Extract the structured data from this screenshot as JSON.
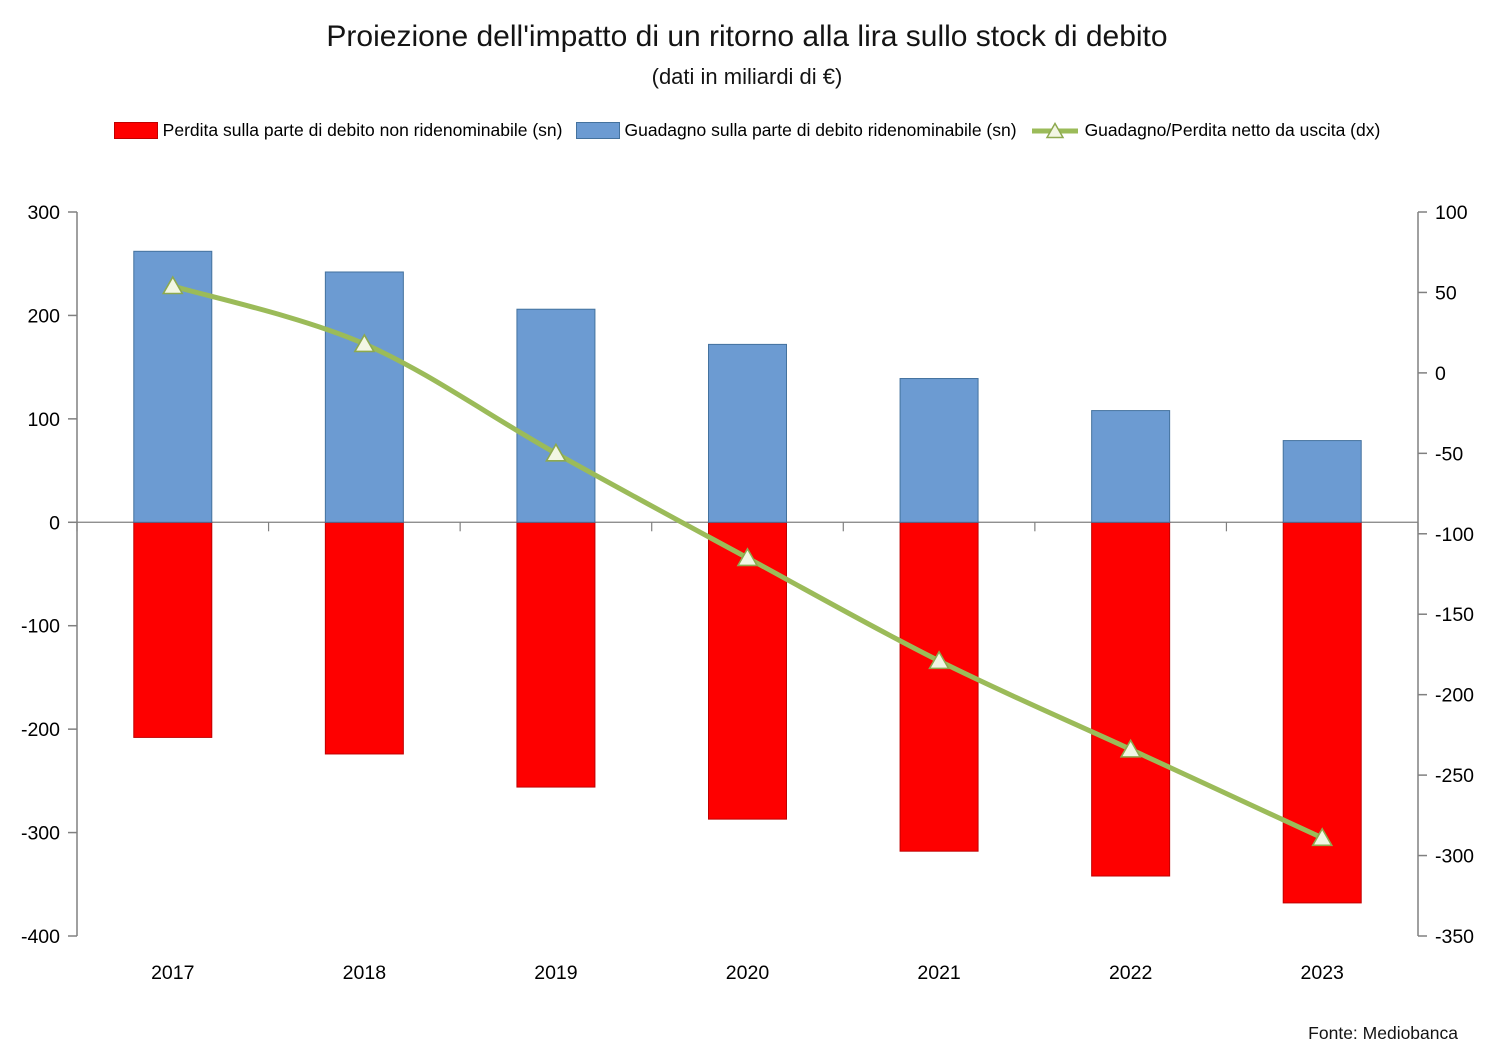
{
  "title": "Proiezione dell'impatto di un ritorno alla lira sullo stock di debito",
  "subtitle": "(dati in miliardi di €)",
  "source": "Fonte: Mediobanca",
  "colors": {
    "loss_bar": "#FE0000",
    "loss_bar_border": "#C00000",
    "gain_bar": "#6C9BD2",
    "gain_bar_border": "#44729E",
    "net_line": "#9BBB59",
    "marker_fill": "#F2F6E4",
    "marker_stroke": "#8DA94F",
    "axis": "#808080",
    "text": "#000000"
  },
  "chart_data": {
    "type": "bar",
    "subtype": "stacked-bars-with-line-combo",
    "categories": [
      "2017",
      "2018",
      "2019",
      "2020",
      "2021",
      "2022",
      "2023"
    ],
    "series": [
      {
        "name": "Perdita sulla parte di debito non ridenominabile (sn)",
        "type": "bar",
        "axis": "left",
        "color_key": "loss_bar",
        "values": [
          -208,
          -224,
          -256,
          -287,
          -318,
          -342,
          -368
        ]
      },
      {
        "name": "Guadagno sulla parte di debito ridenominabile (sn)",
        "type": "bar",
        "axis": "left",
        "color_key": "gain_bar",
        "values": [
          262,
          242,
          206,
          172,
          139,
          108,
          79
        ]
      },
      {
        "name": "Guadagno/Perdita netto da uscita (dx)",
        "type": "line",
        "axis": "right",
        "color_key": "net_line",
        "marker": "triangle-up",
        "values": [
          54,
          18,
          -50,
          -115,
          -179,
          -234,
          -289
        ]
      }
    ],
    "left_axis": {
      "min": -400,
      "max": 300,
      "ticks": [
        300,
        200,
        100,
        0,
        -100,
        -200,
        -300,
        -400
      ]
    },
    "right_axis": {
      "min": -350,
      "max": 100,
      "ticks": [
        100,
        50,
        0,
        -50,
        -100,
        -150,
        -200,
        -250,
        -300,
        -350
      ]
    },
    "grid": "zero-line-only",
    "legend_position": "top"
  }
}
